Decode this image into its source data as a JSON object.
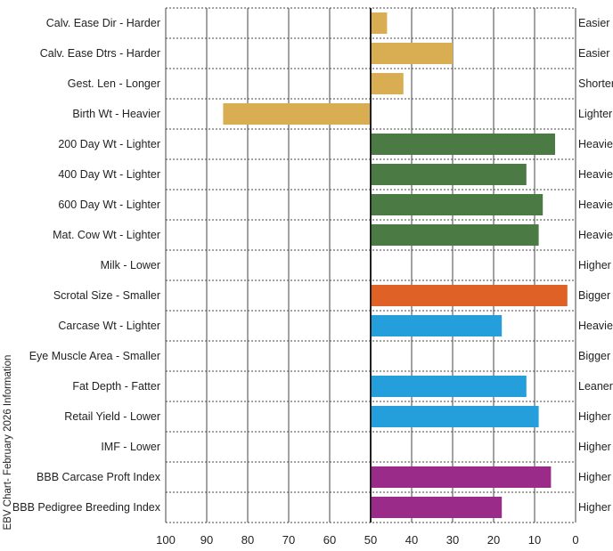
{
  "chart_data": {
    "type": "bar",
    "orientation": "horizontal",
    "side_note": "EBV Chart- February 2026 Information",
    "x_axis_reversed": true,
    "xlim": [
      0,
      100
    ],
    "x_ticks": [
      100,
      90,
      80,
      70,
      60,
      50,
      40,
      30,
      20,
      10,
      0
    ],
    "baseline": 50,
    "grid": true,
    "rows": [
      {
        "label": "Calv. Ease Dir - Harder",
        "right_label": "Easier",
        "value": 46,
        "color": "#d9ae52"
      },
      {
        "label": "Calv. Ease Dtrs - Harder",
        "right_label": "Easier",
        "value": 30,
        "color": "#d9ae52"
      },
      {
        "label": "Gest. Len - Longer",
        "right_label": "Shorter",
        "value": 42,
        "color": "#d9ae52"
      },
      {
        "label": "Birth Wt - Heavier",
        "right_label": "Lighter",
        "value": 86,
        "color": "#d9ae52"
      },
      {
        "label": "200 Day Wt - Lighter",
        "right_label": "Heavier",
        "value": 5,
        "color": "#4c7a45"
      },
      {
        "label": "400 Day Wt - Lighter",
        "right_label": "Heavier",
        "value": 12,
        "color": "#4c7a45"
      },
      {
        "label": "600 Day Wt - Lighter",
        "right_label": "Heavier",
        "value": 8,
        "color": "#4c7a45"
      },
      {
        "label": "Mat. Cow Wt - Lighter",
        "right_label": "Heavier",
        "value": 9,
        "color": "#4c7a45"
      },
      {
        "label": "Milk - Lower",
        "right_label": "Higher",
        "value": null,
        "color": "#4c7a45"
      },
      {
        "label": "Scrotal Size - Smaller",
        "right_label": "Bigger",
        "value": 2,
        "color": "#e06126"
      },
      {
        "label": "Carcase Wt - Lighter",
        "right_label": "Heavier",
        "value": 18,
        "color": "#249fdb"
      },
      {
        "label": "Eye Muscle Area - Smaller",
        "right_label": "Bigger",
        "value": null,
        "color": "#249fdb"
      },
      {
        "label": "Fat Depth - Fatter",
        "right_label": "Leaner",
        "value": 12,
        "color": "#249fdb"
      },
      {
        "label": "Retail Yield - Lower",
        "right_label": "Higher",
        "value": 9,
        "color": "#249fdb"
      },
      {
        "label": "IMF - Lower",
        "right_label": "Higher",
        "value": null,
        "color": "#249fdb"
      },
      {
        "label": "BBB Carcase Proft Index",
        "right_label": "Higher",
        "value": 6,
        "color": "#9a2b89"
      },
      {
        "label": "BBB Pedigree Breeding Index",
        "right_label": "Higher",
        "value": 18,
        "color": "#9a2b89"
      }
    ]
  }
}
